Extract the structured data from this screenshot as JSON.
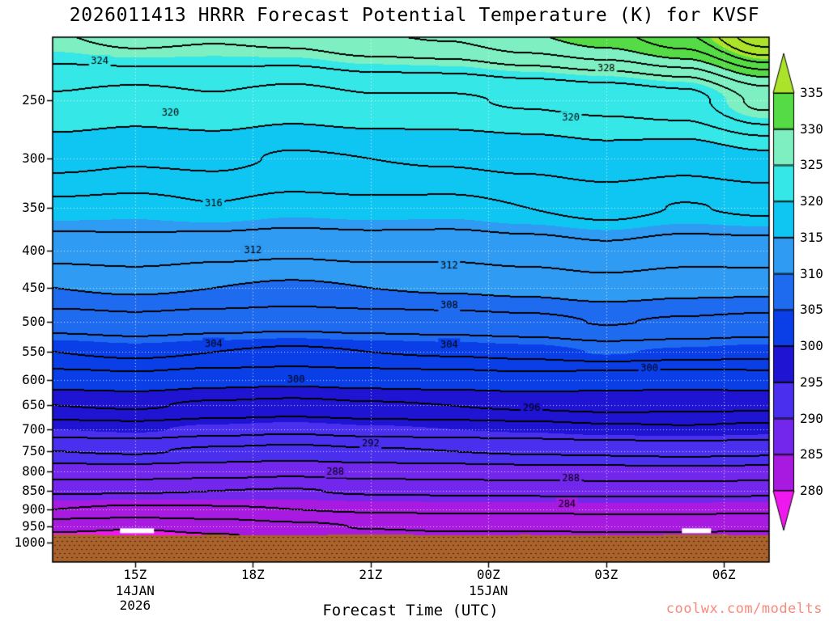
{
  "page": {
    "watermark": "coolwx.com/modelts",
    "watermark_color": "#F9897B"
  },
  "chart_data": {
    "type": "heatmap",
    "style": "filled-contour time-height cross-section",
    "title": "2026011413 HRRR Forecast Potential Temperature (K) for KVSF",
    "xlabel": "Forecast Time (UTC)",
    "ylabel": "",
    "x_range": [
      12.9,
      31.15
    ],
    "p_range": [
      205,
      1062
    ],
    "x_ticks": [
      {
        "hour": 15,
        "label": "15Z"
      },
      {
        "hour": 18,
        "label": "18Z"
      },
      {
        "hour": 21,
        "label": "21Z"
      },
      {
        "hour": 24,
        "label": "00Z"
      },
      {
        "hour": 27,
        "label": "03Z"
      },
      {
        "hour": 30,
        "label": "06Z"
      }
    ],
    "x_date_labels": [
      {
        "hour": 15,
        "lines": [
          "14JAN",
          "2026"
        ]
      },
      {
        "hour": 24,
        "lines": [
          "15JAN"
        ]
      }
    ],
    "y_ticks": [
      250,
      300,
      350,
      400,
      450,
      500,
      550,
      600,
      650,
      700,
      750,
      800,
      850,
      900,
      950,
      1000
    ],
    "contour_interval": 2,
    "fill_interval": 5,
    "grid": {
      "times": [
        13,
        15,
        17,
        19,
        21,
        23,
        25,
        27,
        29,
        31
      ],
      "pressures": [
        200,
        250,
        300,
        350,
        400,
        450,
        500,
        550,
        600,
        650,
        700,
        750,
        800,
        850,
        900,
        950,
        1000,
        1060
      ],
      "theta": [
        [
          326.0,
          327.0,
          326.5,
          327.0,
          328.0,
          328.5,
          330.0,
          331.5,
          334.0,
          340.0
        ],
        [
          321.8,
          321.3,
          321.8,
          321.2,
          321.8,
          321.8,
          322.2,
          322.6,
          323.2,
          326.5
        ],
        [
          318.6,
          318.2,
          318.4,
          317.8,
          318.0,
          318.2,
          318.6,
          319.2,
          318.8,
          319.6
        ],
        [
          315.6,
          315.4,
          315.9,
          315.4,
          315.6,
          315.5,
          316.0,
          316.6,
          315.9,
          316.3
        ],
        [
          312.8,
          313.1,
          312.6,
          312.3,
          312.6,
          312.5,
          313.0,
          313.6,
          313.0,
          313.1
        ],
        [
          310.0,
          310.3,
          310.0,
          309.7,
          310.0,
          310.2,
          310.5,
          311.1,
          310.6,
          310.5
        ],
        [
          307.0,
          307.4,
          307.0,
          306.7,
          307.0,
          307.2,
          307.5,
          308.1,
          307.8,
          307.5
        ],
        [
          304.0,
          304.4,
          304.0,
          303.7,
          304.0,
          304.2,
          304.5,
          305.1,
          304.8,
          304.5
        ],
        [
          301.0,
          301.3,
          300.7,
          300.5,
          300.8,
          301.0,
          301.3,
          300.9,
          300.7,
          301.0
        ],
        [
          298.0,
          298.2,
          297.7,
          297.4,
          297.8,
          298.0,
          298.3,
          298.6,
          298.5,
          298.4
        ],
        [
          295.0,
          295.2,
          294.7,
          294.4,
          294.8,
          295.0,
          295.2,
          295.6,
          295.8,
          295.5
        ],
        [
          292.0,
          292.2,
          291.7,
          291.4,
          291.8,
          292.0,
          292.2,
          292.4,
          292.6,
          292.4
        ],
        [
          289.0,
          289.0,
          288.7,
          288.4,
          288.8,
          289.0,
          289.2,
          289.3,
          289.4,
          289.3
        ],
        [
          286.2,
          286.1,
          286.0,
          285.9,
          286.2,
          286.3,
          286.4,
          286.5,
          286.5,
          286.4
        ],
        [
          284.0,
          283.7,
          283.8,
          284.0,
          284.2,
          284.3,
          284.3,
          284.4,
          284.4,
          284.3
        ],
        [
          280.6,
          280.2,
          280.8,
          281.6,
          282.1,
          282.3,
          282.3,
          282.4,
          282.4,
          282.3
        ],
        [
          278.4,
          278.0,
          278.8,
          280.0,
          280.6,
          280.9,
          280.7,
          281.0,
          280.9,
          280.8
        ],
        [
          278.0,
          277.6,
          278.4,
          279.6,
          280.2,
          280.5,
          280.3,
          280.6,
          280.5,
          280.4
        ]
      ]
    },
    "palette": {
      "base": 280,
      "step": 5,
      "under": "#EF19EF",
      "over": "#ABE32A",
      "bands": [
        {
          "min": 280,
          "color": "#A81ADF"
        },
        {
          "min": 285,
          "color": "#7327EC"
        },
        {
          "min": 290,
          "color": "#4A30EE"
        },
        {
          "min": 295,
          "color": "#1E14D2"
        },
        {
          "min": 300,
          "color": "#0A3FE8"
        },
        {
          "min": 305,
          "color": "#1F6BF0"
        },
        {
          "min": 310,
          "color": "#2F9BF2"
        },
        {
          "min": 315,
          "color": "#0FC6F2"
        },
        {
          "min": 320,
          "color": "#35E7E7"
        },
        {
          "min": 325,
          "color": "#7EEFC1"
        },
        {
          "min": 330,
          "color": "#55DB45"
        }
      ]
    },
    "colorbar_ticks": [
      280,
      285,
      290,
      295,
      300,
      305,
      310,
      315,
      320,
      325,
      330,
      335
    ],
    "terrain": {
      "color": "#A9622B",
      "dot_color": "#46230B",
      "profile": [
        975,
        976,
        975.5,
        976,
        975,
        976,
        975.5,
        977,
        975,
        976
      ]
    },
    "surface_marks": [
      {
        "t": 15.05,
        "p": 963,
        "w": 42,
        "h": 6,
        "color": "#FFFFFF"
      },
      {
        "t": 29.3,
        "p": 963,
        "w": 36,
        "h": 6,
        "color": "#FFFFFF"
      }
    ],
    "contour_labels": [
      {
        "v": 324,
        "t": 14.1,
        "p": 221
      },
      {
        "v": 320,
        "t": 15.9,
        "p": 260
      },
      {
        "v": 328,
        "t": 27.0,
        "p": 226
      },
      {
        "v": 320,
        "t": 26.1,
        "p": 264
      },
      {
        "v": 316,
        "t": 17.0,
        "p": 345
      },
      {
        "v": 312,
        "t": 18.0,
        "p": 400
      },
      {
        "v": 312,
        "t": 23.0,
        "p": 419
      },
      {
        "v": 308,
        "t": 23.0,
        "p": 475
      },
      {
        "v": 304,
        "t": 17.0,
        "p": 536
      },
      {
        "v": 304,
        "t": 23.0,
        "p": 537
      },
      {
        "v": 300,
        "t": 19.1,
        "p": 600
      },
      {
        "v": 300,
        "t": 28.1,
        "p": 578
      },
      {
        "v": 296,
        "t": 25.1,
        "p": 655
      },
      {
        "v": 292,
        "t": 21.0,
        "p": 732
      },
      {
        "v": 288,
        "t": 20.1,
        "p": 800
      },
      {
        "v": 288,
        "t": 26.1,
        "p": 817
      },
      {
        "v": 284,
        "t": 26.0,
        "p": 885
      }
    ]
  }
}
